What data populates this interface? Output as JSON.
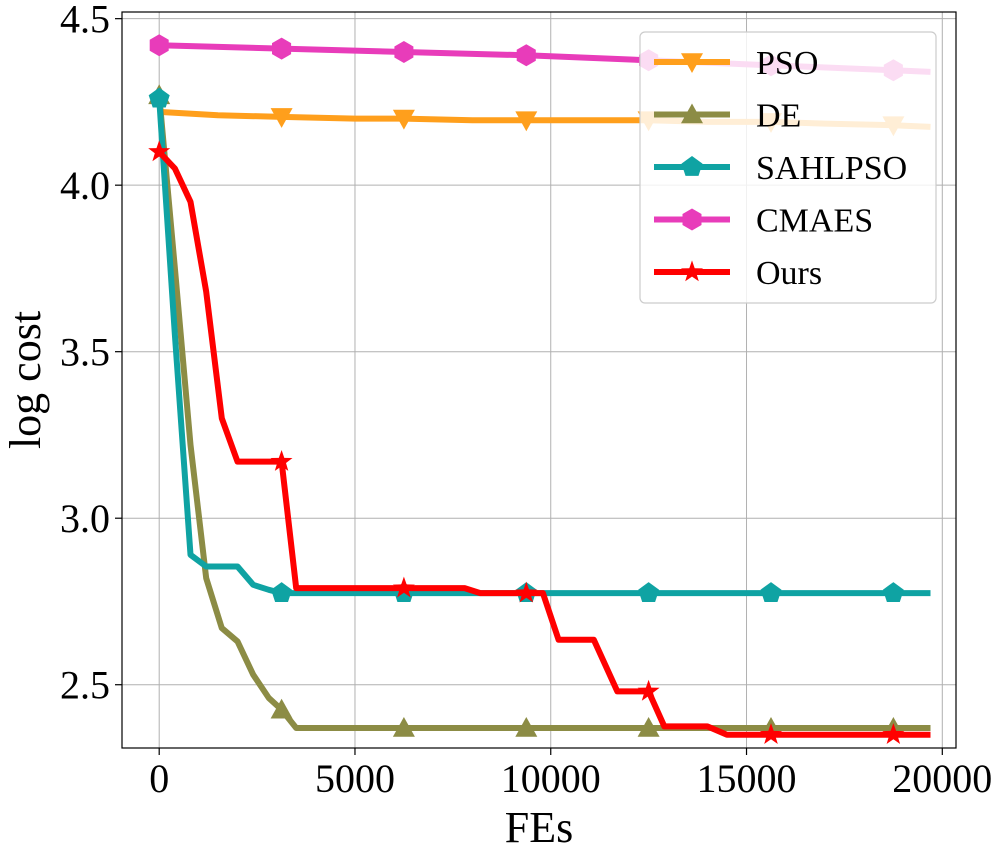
{
  "chart_data": {
    "type": "line",
    "xlabel": "FEs",
    "ylabel": "log cost",
    "xlim": [
      -950,
      20350
    ],
    "ylim": [
      2.31,
      4.52
    ],
    "xticks": [
      0,
      5000,
      10000,
      15000,
      20000
    ],
    "xtick_labels": [
      "0",
      "5000",
      "10000",
      "15000",
      "20000"
    ],
    "yticks": [
      2.5,
      3.0,
      3.5,
      4.0,
      4.5
    ],
    "ytick_labels": [
      "2.5",
      "3.0",
      "3.5",
      "4.0",
      "4.5"
    ],
    "grid": true,
    "legend_position": "top-right",
    "series": [
      {
        "name": "PSO",
        "color": "#ff9f1c",
        "marker": "triangle-down",
        "x": [
          0,
          1500,
          3125,
          5000,
          6250,
          8000,
          9375,
          11000,
          12500,
          14000,
          15625,
          17000,
          18750,
          19700
        ],
        "y": [
          4.22,
          4.21,
          4.205,
          4.2,
          4.2,
          4.195,
          4.195,
          4.195,
          4.195,
          4.19,
          4.19,
          4.185,
          4.18,
          4.175
        ],
        "marker_x": [
          3125,
          6250,
          9375,
          12500,
          15625,
          18750
        ],
        "marker_y": [
          4.205,
          4.2,
          4.195,
          4.195,
          4.19,
          4.18
        ]
      },
      {
        "name": "DE",
        "color": "#8c8c45",
        "marker": "triangle-up",
        "x": [
          0,
          400,
          800,
          1200,
          1600,
          2000,
          2400,
          2800,
          3125,
          3500,
          4000,
          6250,
          9375,
          12500,
          15625,
          18750,
          19700
        ],
        "y": [
          4.27,
          3.75,
          3.22,
          2.82,
          2.67,
          2.63,
          2.53,
          2.46,
          2.425,
          2.37,
          2.37,
          2.37,
          2.37,
          2.37,
          2.37,
          2.37,
          2.37
        ],
        "marker_x": [
          0,
          3125,
          6250,
          9375,
          12500,
          15625,
          18750
        ],
        "marker_y": [
          4.27,
          2.425,
          2.37,
          2.37,
          2.37,
          2.37,
          2.37
        ]
      },
      {
        "name": "SAHLPSO",
        "color": "#0fa3a3",
        "marker": "pentagon",
        "x": [
          0,
          400,
          800,
          1200,
          1600,
          2000,
          2400,
          2800,
          3125,
          3500,
          6250,
          9375,
          12500,
          15625,
          18750,
          19700
        ],
        "y": [
          4.26,
          3.55,
          2.89,
          2.855,
          2.855,
          2.855,
          2.8,
          2.785,
          2.775,
          2.775,
          2.775,
          2.775,
          2.775,
          2.775,
          2.775,
          2.775
        ],
        "marker_x": [
          0,
          3125,
          6250,
          9375,
          12500,
          15625,
          18750
        ],
        "marker_y": [
          4.26,
          2.775,
          2.775,
          2.775,
          2.775,
          2.775,
          2.775
        ]
      },
      {
        "name": "CMAES",
        "color": "#e83cba",
        "marker": "hexagon",
        "x": [
          0,
          3125,
          6250,
          9375,
          12500,
          15625,
          18750,
          19700
        ],
        "y": [
          4.42,
          4.41,
          4.4,
          4.39,
          4.375,
          4.36,
          4.345,
          4.34
        ],
        "marker_x": [
          0,
          3125,
          6250,
          9375,
          12500,
          15625,
          18750
        ],
        "marker_y": [
          4.42,
          4.41,
          4.4,
          4.39,
          4.375,
          4.36,
          4.345
        ]
      },
      {
        "name": "Ours",
        "color": "#ff0000",
        "marker": "star",
        "x": [
          0,
          400,
          800,
          1200,
          1600,
          2000,
          2400,
          2800,
          3125,
          3500,
          4000,
          5000,
          6250,
          7000,
          7800,
          8200,
          9000,
          9375,
          9800,
          10200,
          11100,
          11700,
          12100,
          12500,
          12900,
          14000,
          14500,
          15625,
          18750,
          19700
        ],
        "y": [
          4.1,
          4.05,
          3.95,
          3.68,
          3.3,
          3.17,
          3.17,
          3.17,
          3.17,
          2.79,
          2.79,
          2.79,
          2.79,
          2.79,
          2.79,
          2.775,
          2.775,
          2.775,
          2.775,
          2.635,
          2.635,
          2.48,
          2.48,
          2.48,
          2.375,
          2.375,
          2.35,
          2.35,
          2.35,
          2.35
        ],
        "marker_x": [
          0,
          3125,
          6250,
          9375,
          12500,
          15625,
          18750
        ],
        "marker_y": [
          4.1,
          3.17,
          2.79,
          2.775,
          2.48,
          2.35,
          2.35
        ]
      }
    ]
  }
}
